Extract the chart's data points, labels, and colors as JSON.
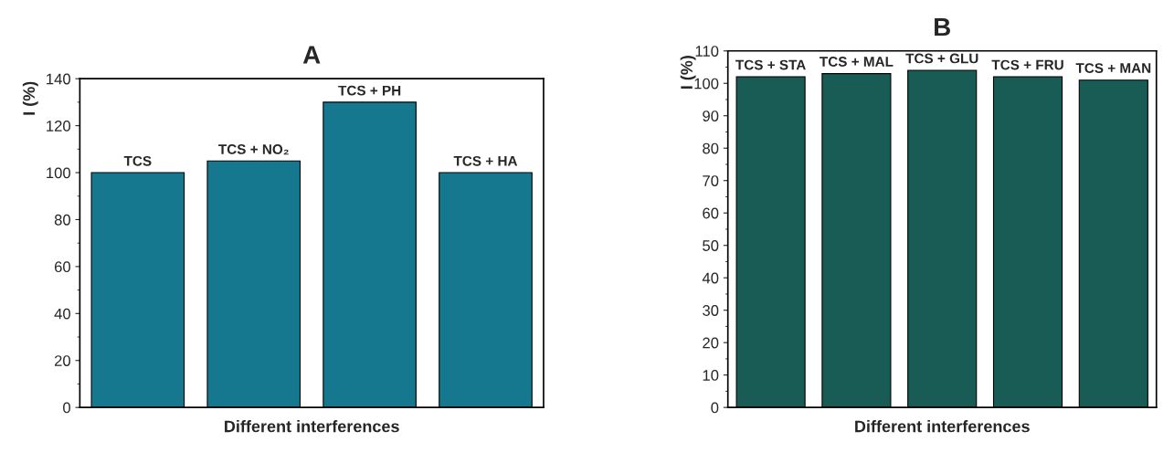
{
  "chart_data": [
    {
      "type": "bar",
      "title": "A",
      "xlabel": "Different interferences",
      "ylabel": "I (%)",
      "categories": [
        "TCS",
        "TCS + NO₂",
        "TCS + PH",
        "TCS + HA"
      ],
      "values": [
        100,
        105,
        130,
        100
      ],
      "color": "#16788f",
      "ylim": [
        0,
        140
      ],
      "yticks": [
        0,
        20,
        40,
        60,
        80,
        100,
        120,
        140
      ],
      "grid": false,
      "tick_labels": "y"
    },
    {
      "type": "bar",
      "title": "B",
      "xlabel": "Different interferences",
      "ylabel": "I (%)",
      "categories": [
        "TCS + STA",
        "TCS + MAL",
        "TCS + GLU",
        "TCS + FRU",
        "TCS + MAN"
      ],
      "values": [
        102,
        103,
        104,
        102,
        101
      ],
      "color": "#185c55",
      "ylim": [
        0,
        110
      ],
      "yticks": [
        0,
        10,
        20,
        30,
        40,
        50,
        60,
        70,
        80,
        90,
        100,
        110
      ],
      "grid": false,
      "tick_labels": "y"
    }
  ]
}
